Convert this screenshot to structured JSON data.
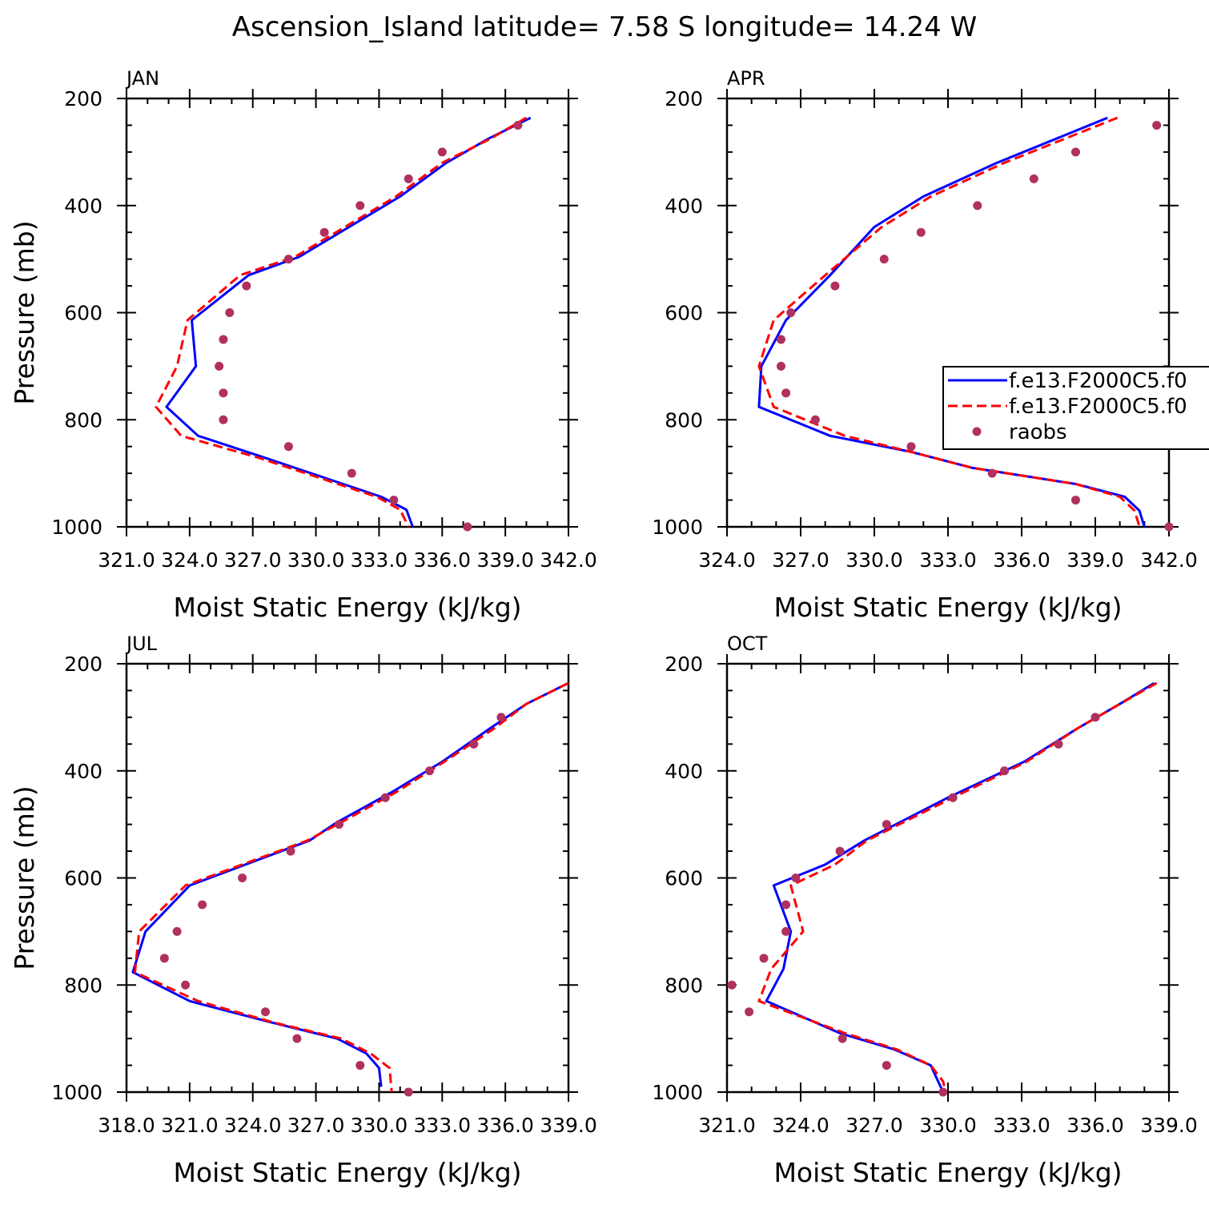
{
  "title": "Ascension_Island  latitude= 7.58 S longitude= 14.24 W",
  "colors": {
    "model1": "#0000ff",
    "model2": "#ff0000",
    "raobs": "#b03060"
  },
  "legend": {
    "placement": "right-middle of APR panel",
    "entries": [
      {
        "label": "f.e13.F2000C5.f0",
        "style": "solid-blue"
      },
      {
        "label": "f.e13.F2000C5.f0",
        "style": "dashed-red"
      },
      {
        "label": "raobs",
        "style": "dot"
      }
    ]
  },
  "chart_data": [
    {
      "panel": "JAN",
      "type": "line",
      "grid": false,
      "xlabel": "Moist Static Energy (kJ/kg)",
      "ylabel": "Pressure (mb)",
      "xlim": [
        321.0,
        342.0
      ],
      "ylim": [
        1000,
        200
      ],
      "y_inverted": true,
      "xticks": [
        "321.0",
        "324.0",
        "327.0",
        "330.0",
        "333.0",
        "336.0",
        "339.0",
        "342.0"
      ],
      "yticks": [
        "200",
        "400",
        "600",
        "800",
        "1000"
      ],
      "series": [
        {
          "style": "solid-blue",
          "points": [
            [
              340.2,
              236
            ],
            [
              338.2,
              275
            ],
            [
              336.2,
              320
            ],
            [
              334.0,
              383
            ],
            [
              329.2,
              496
            ],
            [
              326.8,
              530
            ],
            [
              324.1,
              614
            ],
            [
              324.3,
              700
            ],
            [
              322.9,
              776
            ],
            [
              324.4,
              830
            ],
            [
              327.5,
              870
            ],
            [
              333.1,
              944
            ],
            [
              334.3,
              968
            ],
            [
              334.6,
              1000
            ]
          ]
        },
        {
          "style": "dashed-red",
          "points": [
            [
              340.0,
              236
            ],
            [
              338.3,
              275
            ],
            [
              336.0,
              320
            ],
            [
              333.8,
              383
            ],
            [
              329.0,
              496
            ],
            [
              326.4,
              530
            ],
            [
              323.9,
              614
            ],
            [
              323.4,
              700
            ],
            [
              322.4,
              776
            ],
            [
              323.6,
              830
            ],
            [
              327.2,
              870
            ],
            [
              332.9,
              944
            ],
            [
              334.0,
              968
            ],
            [
              334.4,
              1000
            ]
          ]
        },
        {
          "style": "raobs",
          "points": [
            [
              339.6,
              250
            ],
            [
              336.0,
              300
            ],
            [
              334.4,
              350
            ],
            [
              332.1,
              400
            ],
            [
              330.4,
              450
            ],
            [
              328.7,
              500
            ],
            [
              326.7,
              550
            ],
            [
              325.9,
              600
            ],
            [
              325.6,
              650
            ],
            [
              325.4,
              700
            ],
            [
              325.6,
              750
            ],
            [
              325.6,
              800
            ],
            [
              328.7,
              850
            ],
            [
              331.7,
              900
            ],
            [
              333.7,
              950
            ],
            [
              337.2,
              1000
            ]
          ]
        }
      ]
    },
    {
      "panel": "APR",
      "type": "line",
      "grid": false,
      "xlabel": "Moist Static Energy (kJ/kg)",
      "ylabel": "",
      "xlim": [
        324.0,
        342.0
      ],
      "ylim": [
        1000,
        200
      ],
      "y_inverted": true,
      "xticks": [
        "324.0",
        "327.0",
        "330.0",
        "333.0",
        "336.0",
        "339.0",
        "342.0"
      ],
      "yticks": [
        "200",
        "400",
        "600",
        "800",
        "1000"
      ],
      "series": [
        {
          "style": "solid-blue",
          "points": [
            [
              339.5,
              236
            ],
            [
              335.0,
              320
            ],
            [
              332.0,
              383
            ],
            [
              330.0,
              440
            ],
            [
              328.2,
              530
            ],
            [
              326.4,
              614
            ],
            [
              325.4,
              700
            ],
            [
              325.3,
              776
            ],
            [
              328.2,
              830
            ],
            [
              331.5,
              860
            ],
            [
              334.0,
              890
            ],
            [
              338.2,
              920
            ],
            [
              340.2,
              944
            ],
            [
              340.8,
              970
            ],
            [
              341.0,
              1000
            ]
          ]
        },
        {
          "style": "dashed-red",
          "points": [
            [
              339.9,
              236
            ],
            [
              335.3,
              320
            ],
            [
              332.3,
              383
            ],
            [
              330.3,
              440
            ],
            [
              328.0,
              530
            ],
            [
              325.9,
              614
            ],
            [
              325.3,
              700
            ],
            [
              325.9,
              776
            ],
            [
              328.8,
              830
            ],
            [
              331.5,
              860
            ],
            [
              334.0,
              890
            ],
            [
              338.2,
              920
            ],
            [
              340.0,
              944
            ],
            [
              340.6,
              970
            ],
            [
              340.8,
              1000
            ]
          ]
        },
        {
          "style": "raobs",
          "points": [
            [
              341.5,
              250
            ],
            [
              338.2,
              300
            ],
            [
              336.5,
              350
            ],
            [
              334.2,
              400
            ],
            [
              331.9,
              450
            ],
            [
              330.4,
              500
            ],
            [
              328.4,
              550
            ],
            [
              326.6,
              600
            ],
            [
              326.2,
              650
            ],
            [
              326.2,
              700
            ],
            [
              326.4,
              750
            ],
            [
              327.6,
              800
            ],
            [
              331.5,
              850
            ],
            [
              334.8,
              900
            ],
            [
              338.2,
              950
            ],
            [
              342.0,
              1000
            ]
          ]
        }
      ]
    },
    {
      "panel": "JUL",
      "type": "line",
      "grid": false,
      "xlabel": "Moist Static Energy (kJ/kg)",
      "ylabel": "Pressure (mb)",
      "xlim": [
        318.0,
        339.0
      ],
      "ylim": [
        1000,
        200
      ],
      "y_inverted": true,
      "xticks": [
        "318.0",
        "321.0",
        "324.0",
        "327.0",
        "330.0",
        "333.0",
        "336.0",
        "339.0"
      ],
      "yticks": [
        "200",
        "400",
        "600",
        "800",
        "1000"
      ],
      "series": [
        {
          "style": "solid-blue",
          "points": [
            [
              339.0,
              236
            ],
            [
              337.0,
              275
            ],
            [
              335.3,
              320
            ],
            [
              333.0,
              383
            ],
            [
              330.6,
              440
            ],
            [
              328.0,
              496
            ],
            [
              326.7,
              530
            ],
            [
              321.0,
              614
            ],
            [
              318.9,
              700
            ],
            [
              318.3,
              776
            ],
            [
              321.0,
              830
            ],
            [
              324.9,
              870
            ],
            [
              328.0,
              900
            ],
            [
              329.4,
              928
            ],
            [
              330.0,
              955
            ],
            [
              330.1,
              990
            ]
          ]
        },
        {
          "style": "dashed-red",
          "points": [
            [
              339.0,
              236
            ],
            [
              337.0,
              275
            ],
            [
              335.5,
              320
            ],
            [
              333.1,
              383
            ],
            [
              330.8,
              440
            ],
            [
              328.2,
              496
            ],
            [
              326.6,
              530
            ],
            [
              320.8,
              614
            ],
            [
              318.6,
              700
            ],
            [
              318.4,
              776
            ],
            [
              321.4,
              830
            ],
            [
              325.0,
              870
            ],
            [
              328.2,
              900
            ],
            [
              329.6,
              928
            ],
            [
              330.5,
              955
            ],
            [
              330.6,
              1000
            ]
          ]
        },
        {
          "style": "raobs",
          "points": [
            [
              335.8,
              300
            ],
            [
              334.5,
              350
            ],
            [
              332.4,
              400
            ],
            [
              330.3,
              450
            ],
            [
              328.1,
              500
            ],
            [
              325.8,
              550
            ],
            [
              323.5,
              600
            ],
            [
              321.6,
              650
            ],
            [
              320.4,
              700
            ],
            [
              319.8,
              750
            ],
            [
              320.8,
              800
            ],
            [
              324.6,
              850
            ],
            [
              326.1,
              900
            ],
            [
              329.1,
              950
            ],
            [
              331.4,
              1000
            ]
          ]
        }
      ]
    },
    {
      "panel": "OCT",
      "type": "line",
      "grid": false,
      "xlabel": "Moist Static Energy (kJ/kg)",
      "ylabel": "",
      "xlim": [
        321.0,
        339.0
      ],
      "ylim": [
        1000,
        200
      ],
      "y_inverted": true,
      "xticks": [
        "321.0",
        "324.0",
        "327.0",
        "330.0",
        "333.0",
        "336.0",
        "339.0"
      ],
      "yticks": [
        "200",
        "400",
        "600",
        "800",
        "1000"
      ],
      "series": [
        {
          "style": "solid-blue",
          "points": [
            [
              338.4,
              236
            ],
            [
              337.0,
              275
            ],
            [
              335.3,
              320
            ],
            [
              333.1,
              383
            ],
            [
              330.0,
              450
            ],
            [
              326.6,
              530
            ],
            [
              325.0,
              575
            ],
            [
              322.9,
              614
            ],
            [
              323.6,
              700
            ],
            [
              323.3,
              770
            ],
            [
              322.6,
              830
            ],
            [
              325.6,
              890
            ],
            [
              327.8,
              920
            ],
            [
              329.3,
              950
            ],
            [
              329.6,
              980
            ],
            [
              329.8,
              1000
            ]
          ]
        },
        {
          "style": "dashed-red",
          "points": [
            [
              338.5,
              236
            ],
            [
              337.0,
              275
            ],
            [
              335.3,
              320
            ],
            [
              333.2,
              383
            ],
            [
              330.2,
              450
            ],
            [
              326.7,
              530
            ],
            [
              325.4,
              575
            ],
            [
              323.6,
              614
            ],
            [
              324.1,
              700
            ],
            [
              322.8,
              770
            ],
            [
              322.3,
              830
            ],
            [
              325.8,
              890
            ],
            [
              327.9,
              920
            ],
            [
              329.3,
              950
            ],
            [
              329.8,
              980
            ],
            [
              329.9,
              1000
            ]
          ]
        },
        {
          "style": "raobs",
          "points": [
            [
              336.0,
              300
            ],
            [
              334.5,
              350
            ],
            [
              332.3,
              400
            ],
            [
              330.2,
              450
            ],
            [
              327.5,
              500
            ],
            [
              325.6,
              550
            ],
            [
              323.8,
              600
            ],
            [
              323.4,
              650
            ],
            [
              323.4,
              700
            ],
            [
              322.5,
              750
            ],
            [
              321.2,
              800
            ],
            [
              321.9,
              850
            ],
            [
              325.7,
              900
            ],
            [
              327.5,
              950
            ],
            [
              329.8,
              1000
            ]
          ]
        }
      ]
    }
  ]
}
